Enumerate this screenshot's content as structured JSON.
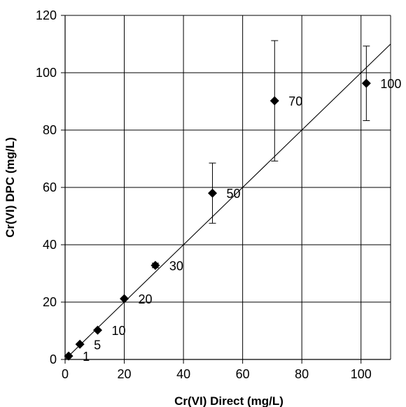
{
  "chart_data": {
    "type": "scatter",
    "title": "",
    "xlabel": "Cr(VI) Direct (mg/L)",
    "ylabel": "Cr(VI) DPC (mg/L)",
    "xlim": [
      0,
      110
    ],
    "ylim": [
      0,
      120
    ],
    "xticks": [
      0,
      20,
      40,
      60,
      80,
      100
    ],
    "yticks": [
      0,
      20,
      40,
      60,
      80,
      100,
      120
    ],
    "grid": true,
    "marker": "diamond",
    "marker_color": "#000000",
    "line": {
      "type": "y=x",
      "from": [
        0,
        0
      ],
      "to": [
        110,
        110
      ]
    },
    "points": [
      {
        "x": 1.2,
        "y": 1.2,
        "err": 0,
        "label": "1"
      },
      {
        "x": 5.0,
        "y": 5.3,
        "err": 0,
        "label": "5"
      },
      {
        "x": 11.0,
        "y": 10.2,
        "err": 0,
        "label": "10"
      },
      {
        "x": 20.0,
        "y": 21.2,
        "err": 0,
        "label": "20"
      },
      {
        "x": 30.5,
        "y": 32.8,
        "err": 0.8,
        "label": "30"
      },
      {
        "x": 49.8,
        "y": 58.0,
        "err": 10.5,
        "label": "50"
      },
      {
        "x": 70.8,
        "y": 90.2,
        "err": 21.0,
        "label": "70"
      },
      {
        "x": 101.8,
        "y": 96.3,
        "err": 13.0,
        "label": "100"
      }
    ]
  }
}
